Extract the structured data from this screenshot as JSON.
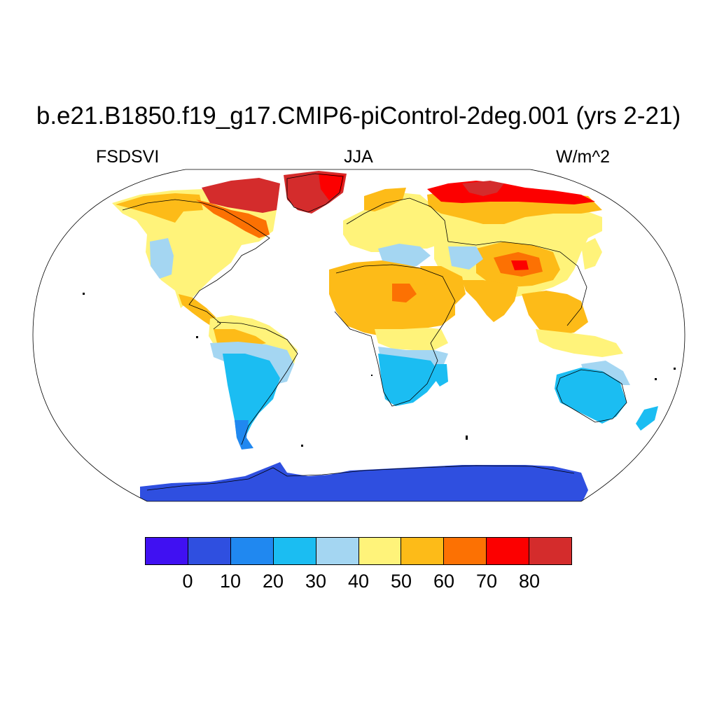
{
  "title": "b.e21.B1850.f19_g17.CMIP6-piControl-2deg.001 (yrs 2-21)",
  "left_label": "FSDSVI",
  "center_label": "JJA",
  "right_label": "W/m^2",
  "colorbar": {
    "colors": [
      "#4010f2",
      "#2f4fe0",
      "#2088f0",
      "#1bbdf2",
      "#a4d6f2",
      "#fff37a",
      "#fdbb18",
      "#fc7103",
      "#fc0000",
      "#d42c2c"
    ],
    "labels": [
      "0",
      "10",
      "20",
      "30",
      "40",
      "50",
      "60",
      "70",
      "80"
    ]
  },
  "map_colors": {
    "ocean": "#ffffff",
    "border": "#000000"
  }
}
